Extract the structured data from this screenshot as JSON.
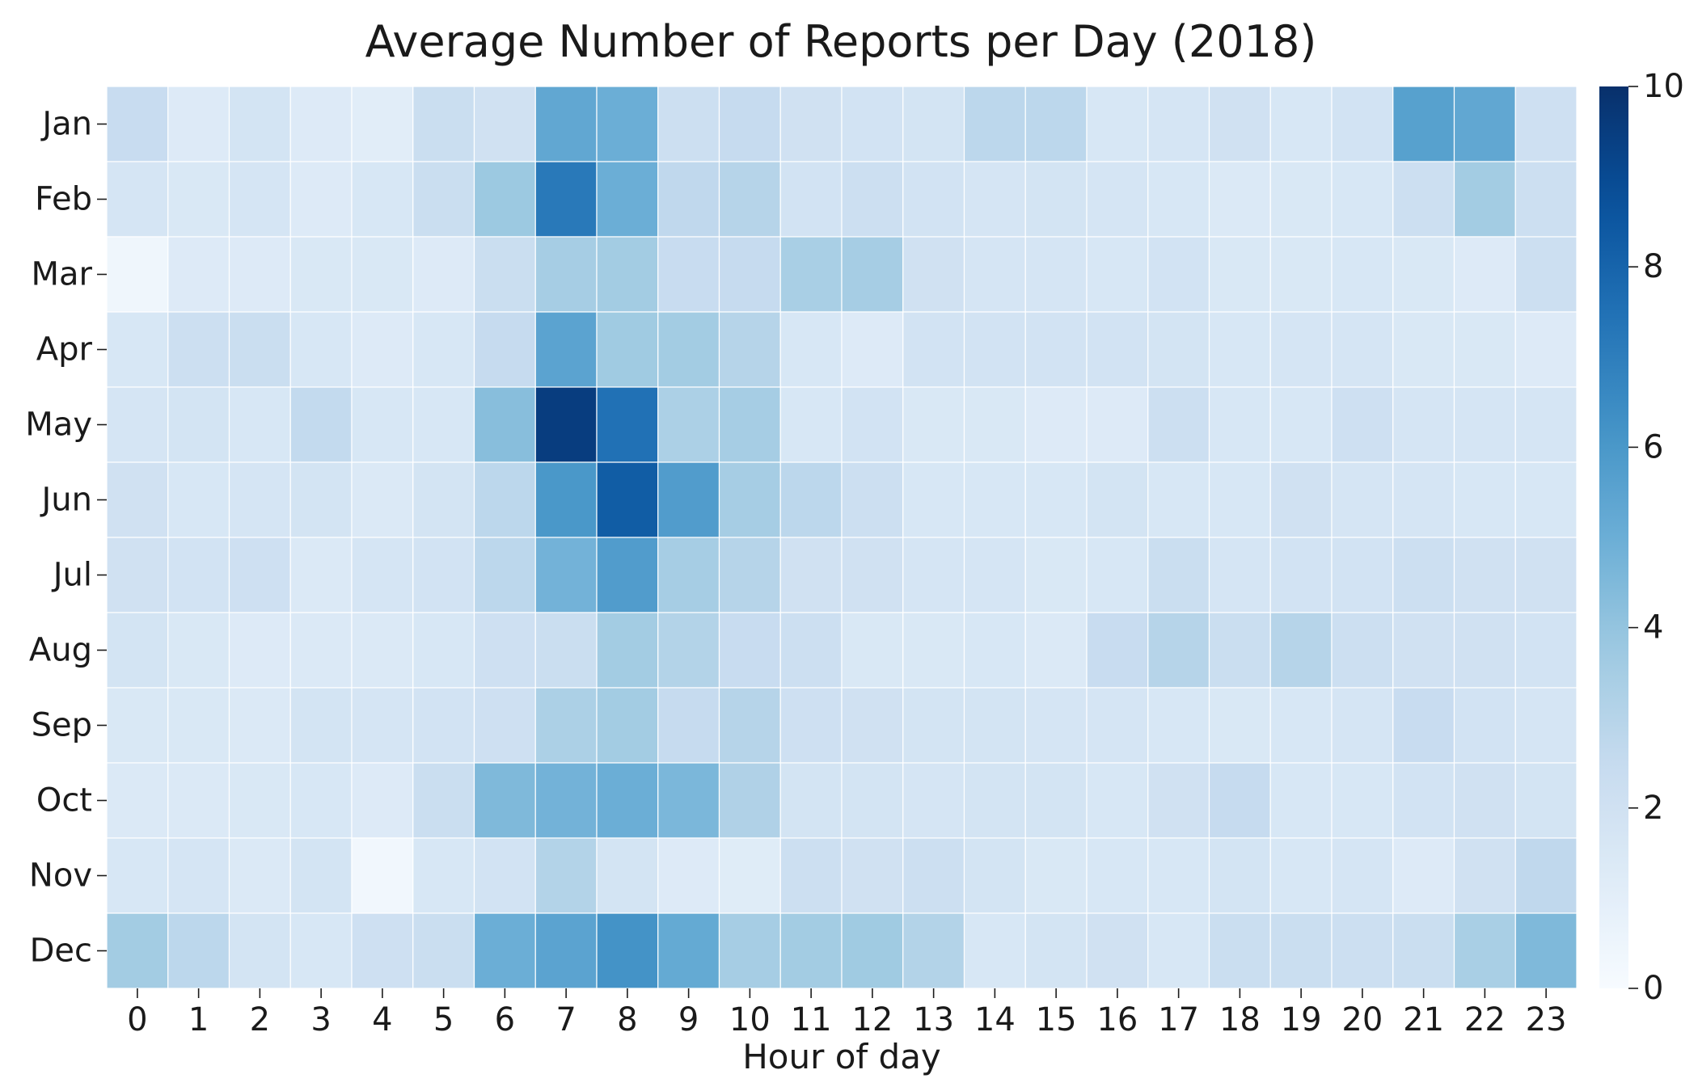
{
  "chart_data": {
    "type": "heatmap",
    "title": "Average Number of Reports per Day (2018)",
    "xlabel": "Hour of day",
    "ylabel": "",
    "x": [
      "0",
      "1",
      "2",
      "3",
      "4",
      "5",
      "6",
      "7",
      "8",
      "9",
      "10",
      "11",
      "12",
      "13",
      "14",
      "15",
      "16",
      "17",
      "18",
      "19",
      "20",
      "21",
      "22",
      "23"
    ],
    "y": [
      "Jan",
      "Feb",
      "Mar",
      "Apr",
      "May",
      "Jun",
      "Jul",
      "Aug",
      "Sep",
      "Oct",
      "Nov",
      "Dec"
    ],
    "values": [
      [
        2.4,
        1.3,
        1.8,
        1.3,
        1.1,
        2.3,
        2.0,
        5.3,
        5.0,
        2.2,
        2.5,
        2.0,
        1.9,
        1.8,
        2.8,
        2.8,
        1.6,
        1.7,
        2.0,
        1.6,
        1.9,
        5.6,
        5.3,
        2.1
      ],
      [
        1.7,
        1.5,
        1.7,
        1.3,
        1.6,
        2.3,
        3.8,
        7.2,
        5.0,
        2.7,
        3.0,
        1.9,
        2.2,
        1.9,
        1.7,
        1.8,
        1.7,
        1.6,
        1.4,
        1.5,
        1.6,
        2.2,
        3.6,
        2.2
      ],
      [
        0.4,
        1.3,
        1.3,
        1.5,
        1.5,
        1.3,
        2.3,
        3.5,
        3.6,
        2.4,
        2.5,
        3.4,
        3.5,
        2.0,
        1.7,
        1.7,
        1.6,
        1.9,
        1.5,
        1.5,
        1.6,
        1.5,
        1.3,
        2.2
      ],
      [
        1.6,
        2.2,
        2.3,
        1.6,
        1.3,
        1.6,
        2.5,
        5.5,
        3.7,
        3.6,
        3.0,
        1.6,
        1.3,
        1.9,
        1.9,
        1.9,
        1.9,
        1.8,
        1.6,
        1.7,
        1.7,
        1.5,
        1.5,
        1.3
      ],
      [
        1.7,
        1.8,
        1.6,
        2.6,
        1.6,
        1.6,
        4.3,
        9.5,
        7.5,
        3.3,
        3.5,
        1.6,
        1.9,
        1.5,
        1.5,
        1.3,
        1.3,
        2.2,
        1.6,
        1.6,
        2.1,
        1.7,
        1.7,
        1.7
      ],
      [
        2.0,
        1.6,
        1.7,
        1.8,
        1.4,
        1.8,
        2.8,
        6.0,
        8.3,
        5.8,
        3.5,
        2.8,
        2.2,
        1.6,
        1.6,
        1.6,
        1.8,
        1.6,
        1.6,
        2.0,
        1.7,
        1.7,
        1.6,
        1.6
      ],
      [
        2.0,
        1.9,
        2.1,
        1.4,
        1.7,
        1.9,
        2.8,
        4.8,
        5.8,
        3.5,
        3.0,
        2.0,
        2.0,
        1.7,
        1.7,
        1.5,
        1.6,
        2.3,
        1.7,
        1.9,
        1.9,
        2.2,
        2.0,
        2.0
      ],
      [
        1.8,
        1.5,
        1.3,
        1.4,
        1.4,
        1.6,
        2.1,
        2.3,
        3.6,
        3.1,
        2.4,
        2.2,
        1.5,
        1.5,
        1.6,
        1.4,
        2.4,
        3.0,
        2.3,
        3.0,
        2.2,
        2.0,
        2.0,
        1.9
      ],
      [
        1.5,
        1.5,
        1.4,
        1.8,
        1.7,
        1.9,
        2.1,
        3.3,
        3.6,
        2.5,
        3.0,
        2.1,
        2.0,
        1.8,
        1.8,
        1.7,
        1.7,
        1.6,
        1.5,
        1.6,
        1.7,
        2.4,
        1.9,
        1.7
      ],
      [
        1.4,
        1.4,
        1.5,
        1.6,
        1.3,
        2.3,
        4.5,
        4.8,
        5.0,
        4.6,
        3.2,
        1.8,
        1.8,
        1.7,
        1.8,
        1.8,
        1.6,
        2.0,
        2.5,
        1.6,
        1.6,
        1.9,
        2.0,
        1.8
      ],
      [
        1.6,
        1.7,
        1.4,
        1.8,
        0.3,
        1.6,
        1.9,
        3.1,
        1.8,
        1.3,
        1.2,
        2.2,
        2.0,
        2.2,
        1.8,
        1.5,
        1.6,
        1.6,
        1.8,
        1.6,
        1.7,
        1.3,
        2.0,
        2.7
      ],
      [
        3.6,
        2.8,
        1.8,
        1.6,
        2.1,
        2.3,
        5.0,
        5.5,
        6.2,
        5.2,
        3.5,
        3.6,
        3.7,
        3.1,
        1.6,
        1.8,
        2.0,
        1.6,
        2.3,
        2.3,
        2.2,
        2.3,
        3.4,
        4.5
      ]
    ],
    "colorbar": {
      "min": 0,
      "max": 10,
      "ticks": [
        "0",
        "2",
        "4",
        "6",
        "8",
        "10"
      ],
      "colormap": "Blues"
    },
    "grid": false
  }
}
